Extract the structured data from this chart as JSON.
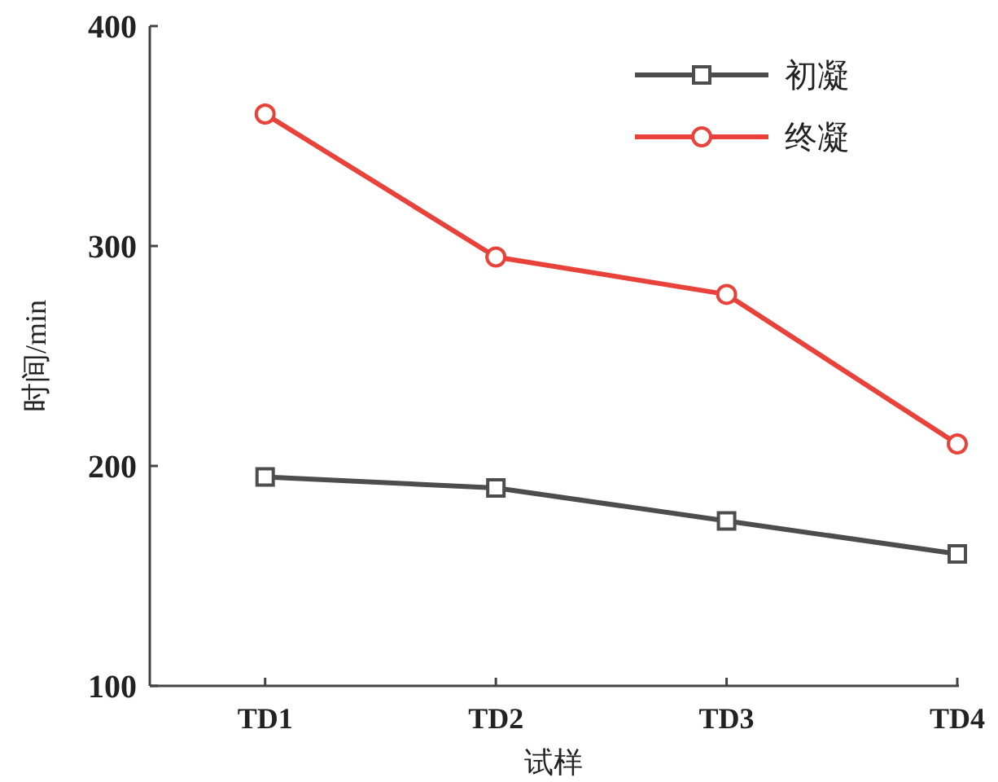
{
  "chart_data": {
    "type": "line",
    "xlabel": "试样",
    "ylabel": "时间/min",
    "categories": [
      "TD1",
      "TD2",
      "TD3",
      "TD4"
    ],
    "series": [
      {
        "name": "初凝",
        "color": "#4d4d4d",
        "marker": "square",
        "values": [
          195,
          190,
          175,
          160
        ]
      },
      {
        "name": "终凝",
        "color": "#e8423a",
        "marker": "circle",
        "values": [
          360,
          295,
          278,
          210
        ]
      }
    ],
    "ylim": [
      100,
      400
    ],
    "yticks": [
      100,
      200,
      300,
      400
    ],
    "legend": "top right",
    "grid": false,
    "line_style": "solid"
  }
}
